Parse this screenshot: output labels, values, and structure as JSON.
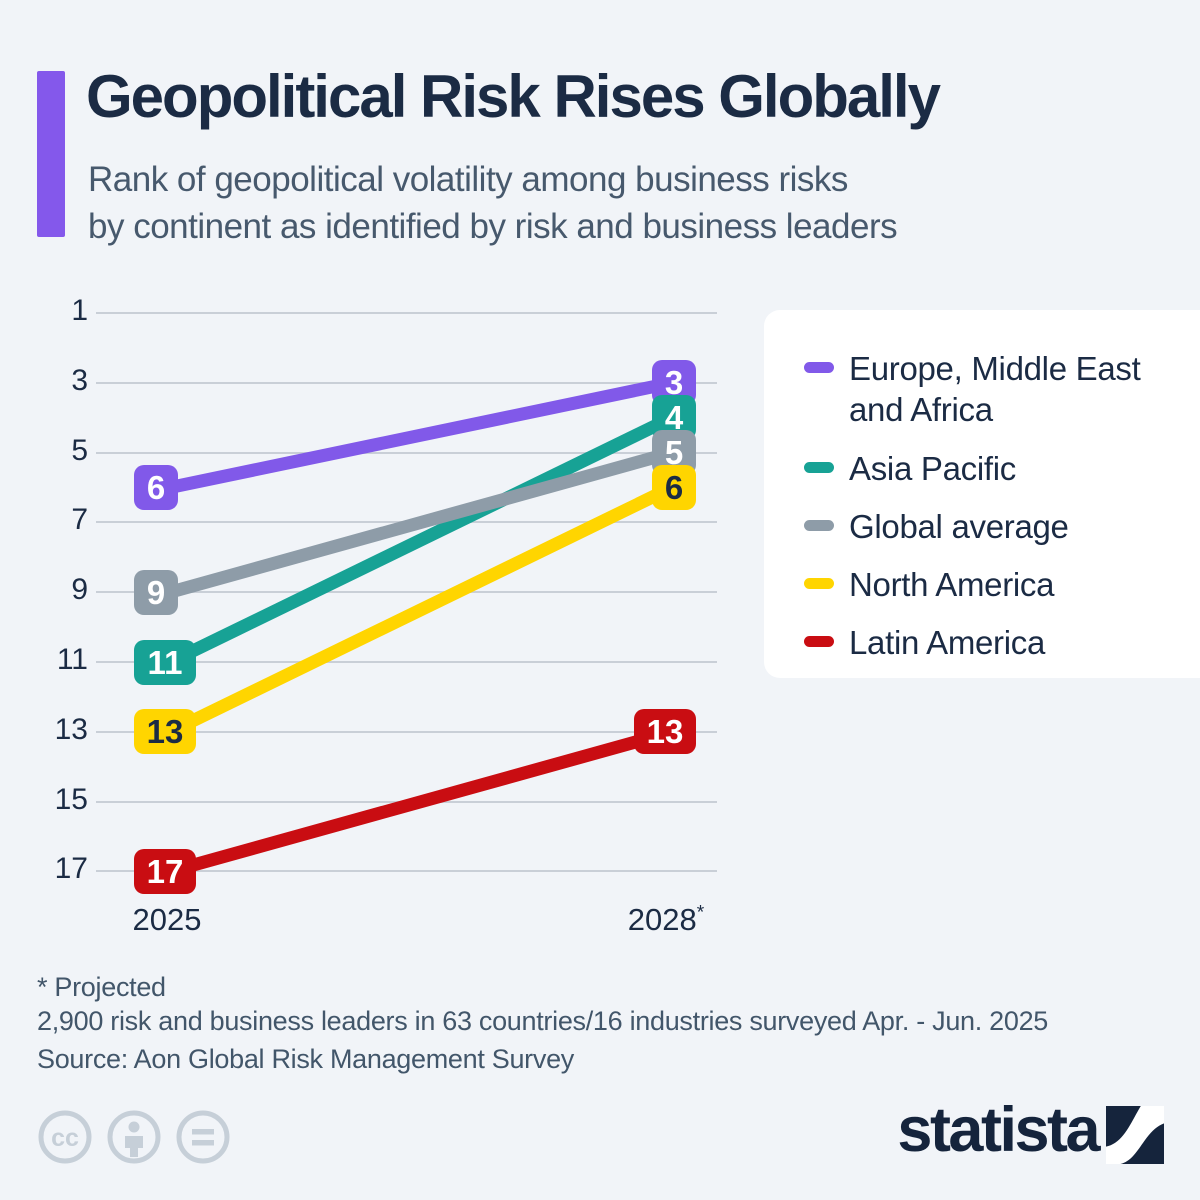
{
  "header": {
    "title": "Geopolitical Risk Rises Globally",
    "subtitle_line1": "Rank of geopolitical volatility among business risks",
    "subtitle_line2": "by continent as identified by risk and business leaders",
    "accent_color": "#8458EB"
  },
  "chart_data": {
    "type": "line",
    "title": "Rank of geopolitical volatility among business risks by continent",
    "x": [
      "2025",
      "2028*"
    ],
    "y_axis": {
      "label": "rank",
      "ticks": [
        1,
        3,
        5,
        7,
        9,
        11,
        13,
        15,
        17
      ],
      "range": [
        1,
        17
      ],
      "inverted": true
    },
    "grid": true,
    "legend_position": "right",
    "series": [
      {
        "name": "Europe, Middle East and Africa",
        "color": "#8159E9",
        "values": [
          6,
          3
        ],
        "label_text_color": "#FFFFFF"
      },
      {
        "name": "Asia Pacific",
        "color": "#17A295",
        "values": [
          11,
          4
        ],
        "label_text_color": "#FFFFFF"
      },
      {
        "name": "Global average",
        "color": "#8E9CA8",
        "values": [
          9,
          5
        ],
        "label_text_color": "#FFFFFF"
      },
      {
        "name": "North America",
        "color": "#FFD500",
        "values": [
          13,
          6
        ],
        "label_text_color": "#1B2B44"
      },
      {
        "name": "Latin America",
        "color": "#C90D12",
        "values": [
          17,
          13
        ],
        "label_text_color": "#FFFFFF"
      }
    ]
  },
  "footer": {
    "note1": "* Projected",
    "note2": "2,900 risk and business leaders in 63 countries/16 industries surveyed Apr. - Jun. 2025",
    "source": "Source: Aon Global Risk Management Survey"
  },
  "branding": {
    "logo_text": "statista",
    "license": "CC BY-ND"
  },
  "colors": {
    "background": "#F1F4F8",
    "gridline": "#C9CFD7",
    "text_dark": "#1B2B44",
    "text_muted": "#42566A",
    "license_icon": "#C6CFD8",
    "logo_navy": "#15243C"
  }
}
